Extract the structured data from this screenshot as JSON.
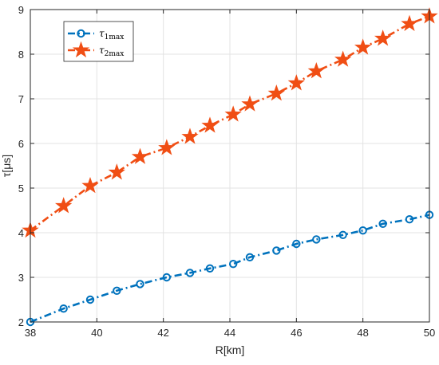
{
  "chart_data": {
    "type": "line",
    "xlabel": "R[km]",
    "ylabel": "τ[μs]",
    "xlim": [
      38,
      50
    ],
    "ylim": [
      2,
      9
    ],
    "xticks": [
      "38",
      "40",
      "42",
      "44",
      "46",
      "48",
      "50"
    ],
    "yticks": [
      "2",
      "3",
      "4",
      "5",
      "6",
      "7",
      "8",
      "9"
    ],
    "grid": true,
    "legend_position": "top-left",
    "series": [
      {
        "name": "τ1max",
        "name_symbol": "τ",
        "name_sub": "1max",
        "color": "#0072BD",
        "marker": "circle",
        "linestyle": "dash-dot",
        "x": [
          38,
          39,
          39.8,
          40.6,
          41.3,
          42.1,
          42.8,
          43.4,
          44.1,
          44.6,
          45.4,
          46,
          46.6,
          47.4,
          48,
          48.6,
          49.4,
          50
        ],
        "y": [
          2.0,
          2.3,
          2.5,
          2.7,
          2.85,
          3.0,
          3.1,
          3.2,
          3.3,
          3.45,
          3.6,
          3.75,
          3.85,
          3.95,
          4.05,
          4.2,
          4.3,
          4.4
        ]
      },
      {
        "name": "τ2max",
        "name_symbol": "τ",
        "name_sub": "2max",
        "color": "#F04E14",
        "marker": "star",
        "linestyle": "dash-dot",
        "x": [
          38,
          39,
          39.8,
          40.6,
          41.3,
          42.1,
          42.8,
          43.4,
          44.1,
          44.6,
          45.4,
          46,
          46.6,
          47.4,
          48,
          48.6,
          49.4,
          50
        ],
        "y": [
          4.05,
          4.6,
          5.05,
          5.35,
          5.7,
          5.9,
          6.15,
          6.4,
          6.65,
          6.88,
          7.12,
          7.35,
          7.62,
          7.88,
          8.15,
          8.35,
          8.68,
          8.85
        ]
      }
    ]
  }
}
